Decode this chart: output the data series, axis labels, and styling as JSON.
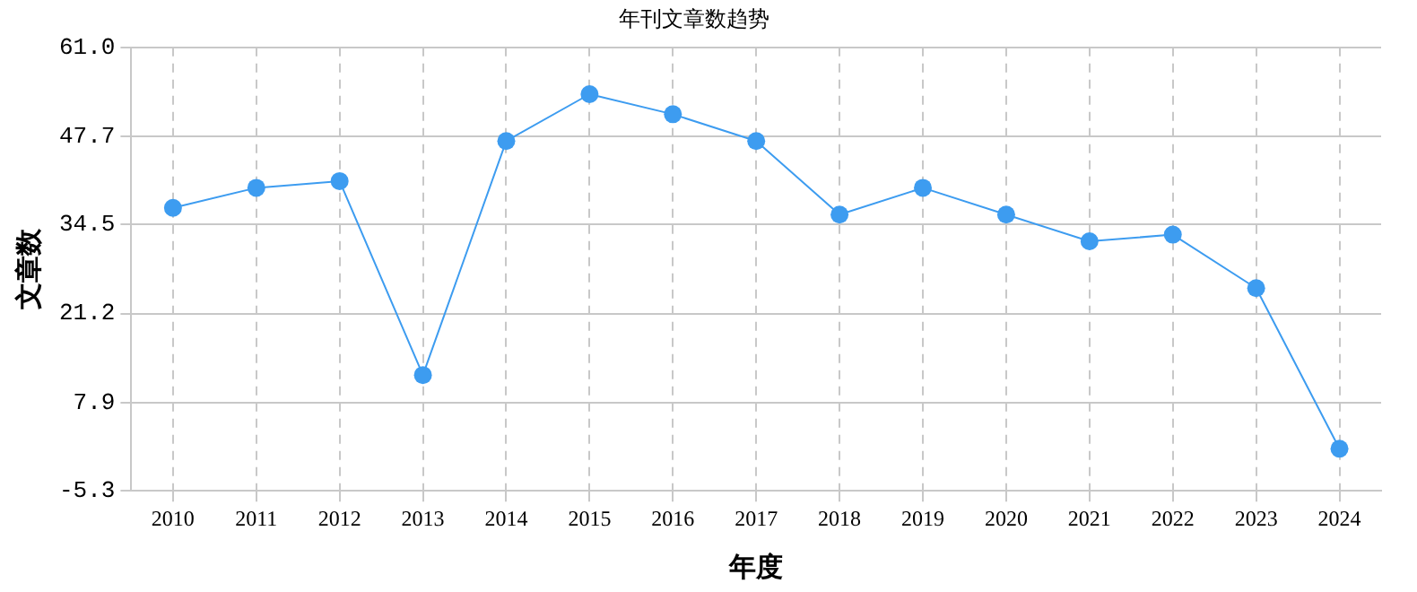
{
  "chart_data": {
    "type": "line",
    "title": "年刊文章数趋势",
    "xlabel": "年度",
    "ylabel": "文章数",
    "categories": [
      "2010",
      "2011",
      "2012",
      "2013",
      "2014",
      "2015",
      "2016",
      "2017",
      "2018",
      "2019",
      "2020",
      "2021",
      "2022",
      "2023",
      "2024"
    ],
    "series": [
      {
        "color": "#3d9cf0",
        "values": [
          37,
          40,
          41,
          12,
          47,
          54,
          51,
          47,
          36,
          40,
          36,
          32,
          33,
          25,
          1
        ]
      }
    ],
    "ylim": [
      -5.3,
      61.0
    ],
    "yticks": [
      {
        "value": -5.3,
        "label": "-5.3"
      },
      {
        "value": 7.9,
        "label": "7.9"
      },
      {
        "value": 21.2,
        "label": "21.2"
      },
      {
        "value": 34.5,
        "label": "34.5"
      },
      {
        "value": 47.7,
        "label": "47.7"
      },
      {
        "value": 61.0,
        "label": "61.0"
      }
    ],
    "grid": true,
    "legend": false,
    "marker": "circle",
    "line_style": "solid"
  }
}
